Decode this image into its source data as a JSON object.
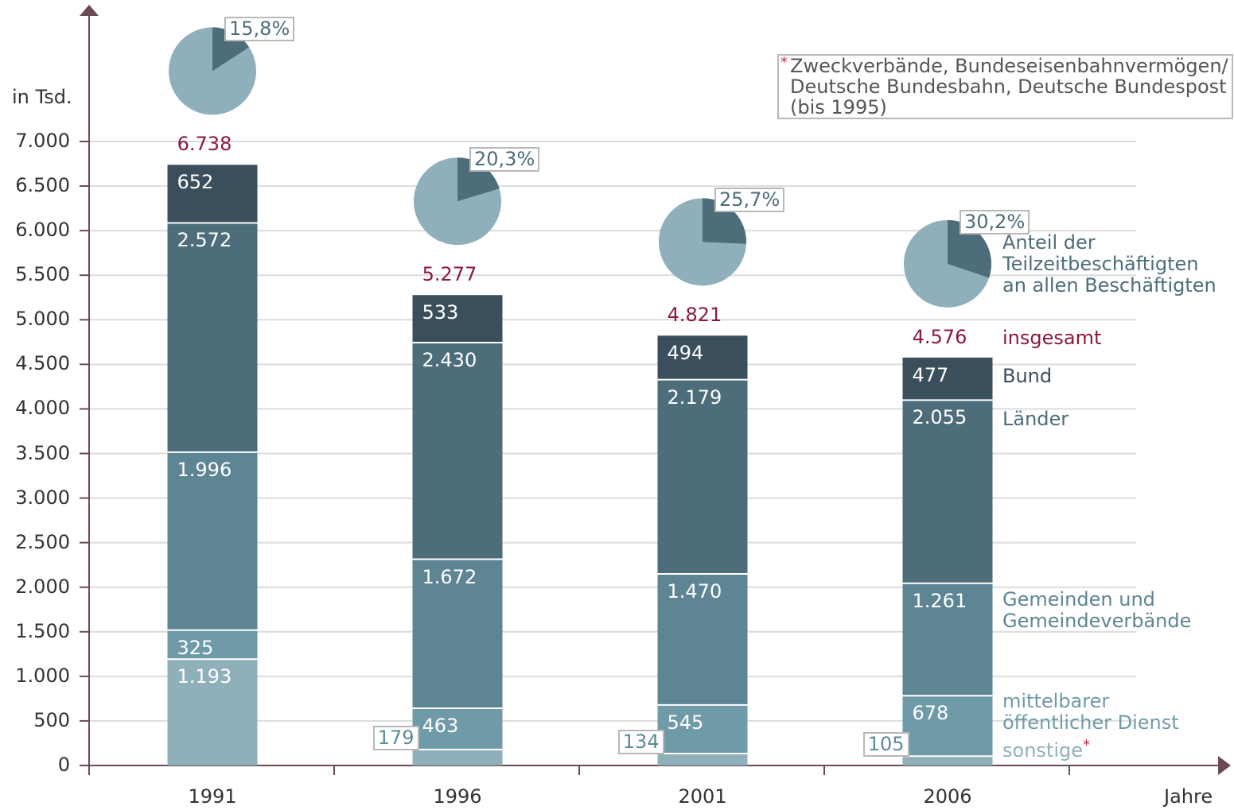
{
  "chart_data": {
    "type": "bar",
    "stacked": true,
    "y_label": "in Tsd.",
    "x_label": "Jahre",
    "categories": [
      "1991",
      "1996",
      "2001",
      "2006"
    ],
    "series": [
      {
        "name": "sonstige",
        "color": "#8fb0bb",
        "values": [
          1193,
          179,
          134,
          105
        ],
        "value_labels": [
          "1.193",
          "179",
          "134",
          "105"
        ]
      },
      {
        "name": "mittelbarer öffentlicher Dienst",
        "color": "#6f9aa8",
        "values": [
          325,
          463,
          545,
          678
        ]
      },
      {
        "name": "Gemeinden und\nGemeindeverbände",
        "color": "#5e8594",
        "values": [
          1996,
          1672,
          1470,
          1261
        ],
        "value_labels": [
          "1.996",
          "1.672",
          "1.470",
          "1.261"
        ]
      },
      {
        "name": "Länder",
        "color": "#4d6d7a",
        "values": [
          2572,
          2430,
          2179,
          2055
        ],
        "value_labels": [
          "2.572",
          "2.430",
          "2.179",
          "2.055"
        ]
      },
      {
        "name": "Bund",
        "color": "#3a4f5b",
        "values": [
          652,
          533,
          494,
          477
        ]
      }
    ],
    "totals": [
      6738,
      5277,
      4821,
      4576
    ],
    "totals_value_labels": [
      "6.738",
      "5.277",
      "4.821",
      "4.576"
    ],
    "totals_label": "insgesamt",
    "totals_color": "#8b1a3a",
    "pie": {
      "label": "Anteil der\nTeilzeitbeschäftigten\nan allen Beschäftigten",
      "values": [
        15.8,
        20.3,
        25.7,
        30.2
      ],
      "value_labels": [
        "15,8%",
        "20,3%",
        "25,7%",
        "30,2%"
      ],
      "colors": [
        "#4d6d7a",
        "#8fb0bb"
      ]
    },
    "footnote_mark": "*",
    "footnote": "Zweckverbände, Bundeseisenbahnvermögen/\nDeutsche Bundesbahn, Deutsche Bundespost\n(bis 1995)",
    "ylim": [
      0,
      7000
    ],
    "yticks": [
      0,
      500,
      {
        "value": 1000,
        "label": "1.000"
      },
      {
        "value": 1500,
        "label": "1.500"
      },
      {
        "value": 2000,
        "label": "2.000"
      },
      {
        "value": 2500,
        "label": "2.500"
      },
      {
        "value": 3000,
        "label": "3.000"
      },
      {
        "value": 3500,
        "label": "3.500"
      },
      {
        "value": 4000,
        "label": "4.000"
      },
      {
        "value": 4500,
        "label": "4.500"
      },
      {
        "value": 5000,
        "label": "5.000"
      },
      {
        "value": 5500,
        "label": "5.500"
      },
      {
        "value": 6000,
        "label": "6.000"
      },
      {
        "value": 6500,
        "label": "6.500"
      },
      {
        "value": 7000,
        "label": "7.000"
      }
    ],
    "grid": true
  }
}
